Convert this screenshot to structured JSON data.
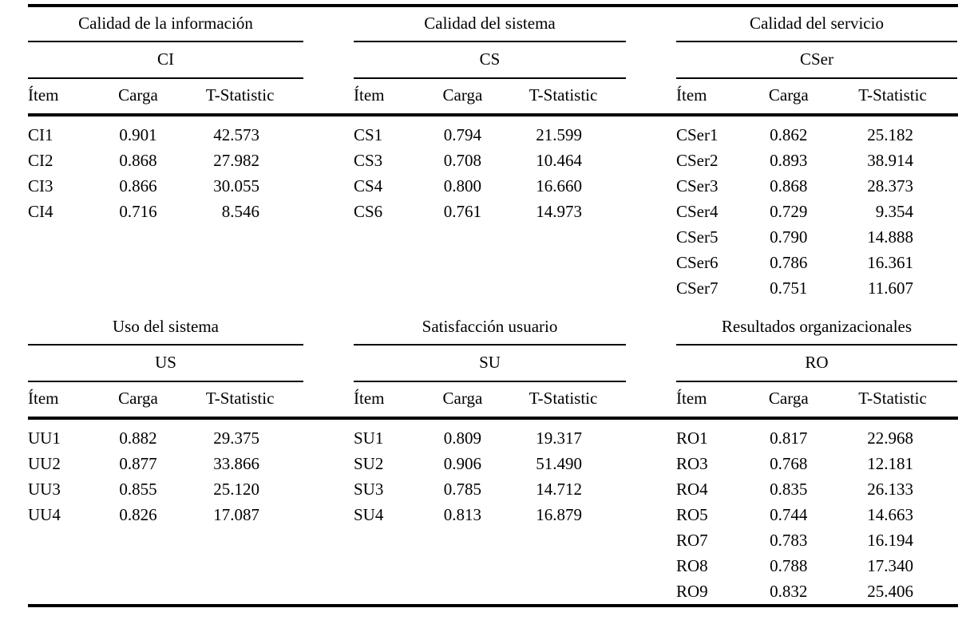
{
  "theme": {
    "background": "#ffffff",
    "ink": "#000000"
  },
  "table": {
    "bands": [
      {
        "groups": [
          {
            "title": "Calidad de la información",
            "abbrev": "CI",
            "headers": {
              "item": "Ítem",
              "load": "Carga",
              "tstat": "T-Statistic"
            },
            "rows": [
              {
                "item": "CI1",
                "load": "0.901",
                "tstat": "42.573"
              },
              {
                "item": "CI2",
                "load": "0.868",
                "tstat": "27.982"
              },
              {
                "item": "CI3",
                "load": "0.866",
                "tstat": "30.055"
              },
              {
                "item": "CI4",
                "load": "0.716",
                "tstat": "8.546"
              }
            ]
          },
          {
            "title": "Calidad del sistema",
            "abbrev": "CS",
            "headers": {
              "item": "Ítem",
              "load": "Carga",
              "tstat": "T-Statistic"
            },
            "rows": [
              {
                "item": "CS1",
                "load": "0.794",
                "tstat": "21.599"
              },
              {
                "item": "CS3",
                "load": "0.708",
                "tstat": "10.464"
              },
              {
                "item": "CS4",
                "load": "0.800",
                "tstat": "16.660"
              },
              {
                "item": "CS6",
                "load": "0.761",
                "tstat": "14.973"
              }
            ]
          },
          {
            "title": "Calidad del servicio",
            "abbrev": "CSer",
            "headers": {
              "item": "Ítem",
              "load": "Carga",
              "tstat": "T-Statistic"
            },
            "rows": [
              {
                "item": "CSer1",
                "load": "0.862",
                "tstat": "25.182"
              },
              {
                "item": "CSer2",
                "load": "0.893",
                "tstat": "38.914"
              },
              {
                "item": "CSer3",
                "load": "0.868",
                "tstat": "28.373"
              },
              {
                "item": "CSer4",
                "load": "0.729",
                "tstat": "9.354"
              },
              {
                "item": "CSer5",
                "load": "0.790",
                "tstat": "14.888"
              },
              {
                "item": "CSer6",
                "load": "0.786",
                "tstat": "16.361"
              },
              {
                "item": "CSer7",
                "load": "0.751",
                "tstat": "11.607"
              }
            ]
          }
        ]
      },
      {
        "groups": [
          {
            "title": "Uso del sistema",
            "abbrev": "US",
            "headers": {
              "item": "Ítem",
              "load": "Carga",
              "tstat": "T-Statistic"
            },
            "rows": [
              {
                "item": "UU1",
                "load": "0.882",
                "tstat": "29.375"
              },
              {
                "item": "UU2",
                "load": "0.877",
                "tstat": "33.866"
              },
              {
                "item": "UU3",
                "load": "0.855",
                "tstat": "25.120"
              },
              {
                "item": "UU4",
                "load": "0.826",
                "tstat": "17.087"
              }
            ]
          },
          {
            "title": "Satisfacción usuario",
            "abbrev": "SU",
            "headers": {
              "item": "Ítem",
              "load": "Carga",
              "tstat": "T-Statistic"
            },
            "rows": [
              {
                "item": "SU1",
                "load": "0.809",
                "tstat": "19.317"
              },
              {
                "item": "SU2",
                "load": "0.906",
                "tstat": "51.490"
              },
              {
                "item": "SU3",
                "load": "0.785",
                "tstat": "14.712"
              },
              {
                "item": "SU4",
                "load": "0.813",
                "tstat": "16.879"
              }
            ]
          },
          {
            "title": "Resultados organizacionales",
            "abbrev": "RO",
            "headers": {
              "item": "Ítem",
              "load": "Carga",
              "tstat": "T-Statistic"
            },
            "rows": [
              {
                "item": "RO1",
                "load": "0.817",
                "tstat": "22.968"
              },
              {
                "item": "RO3",
                "load": "0.768",
                "tstat": "12.181"
              },
              {
                "item": "RO4",
                "load": "0.835",
                "tstat": "26.133"
              },
              {
                "item": "RO5",
                "load": "0.744",
                "tstat": "14.663"
              },
              {
                "item": "RO7",
                "load": "0.783",
                "tstat": "16.194"
              },
              {
                "item": "RO8",
                "load": "0.788",
                "tstat": "17.340"
              },
              {
                "item": "RO9",
                "load": "0.832",
                "tstat": "25.406"
              }
            ]
          }
        ]
      }
    ]
  }
}
